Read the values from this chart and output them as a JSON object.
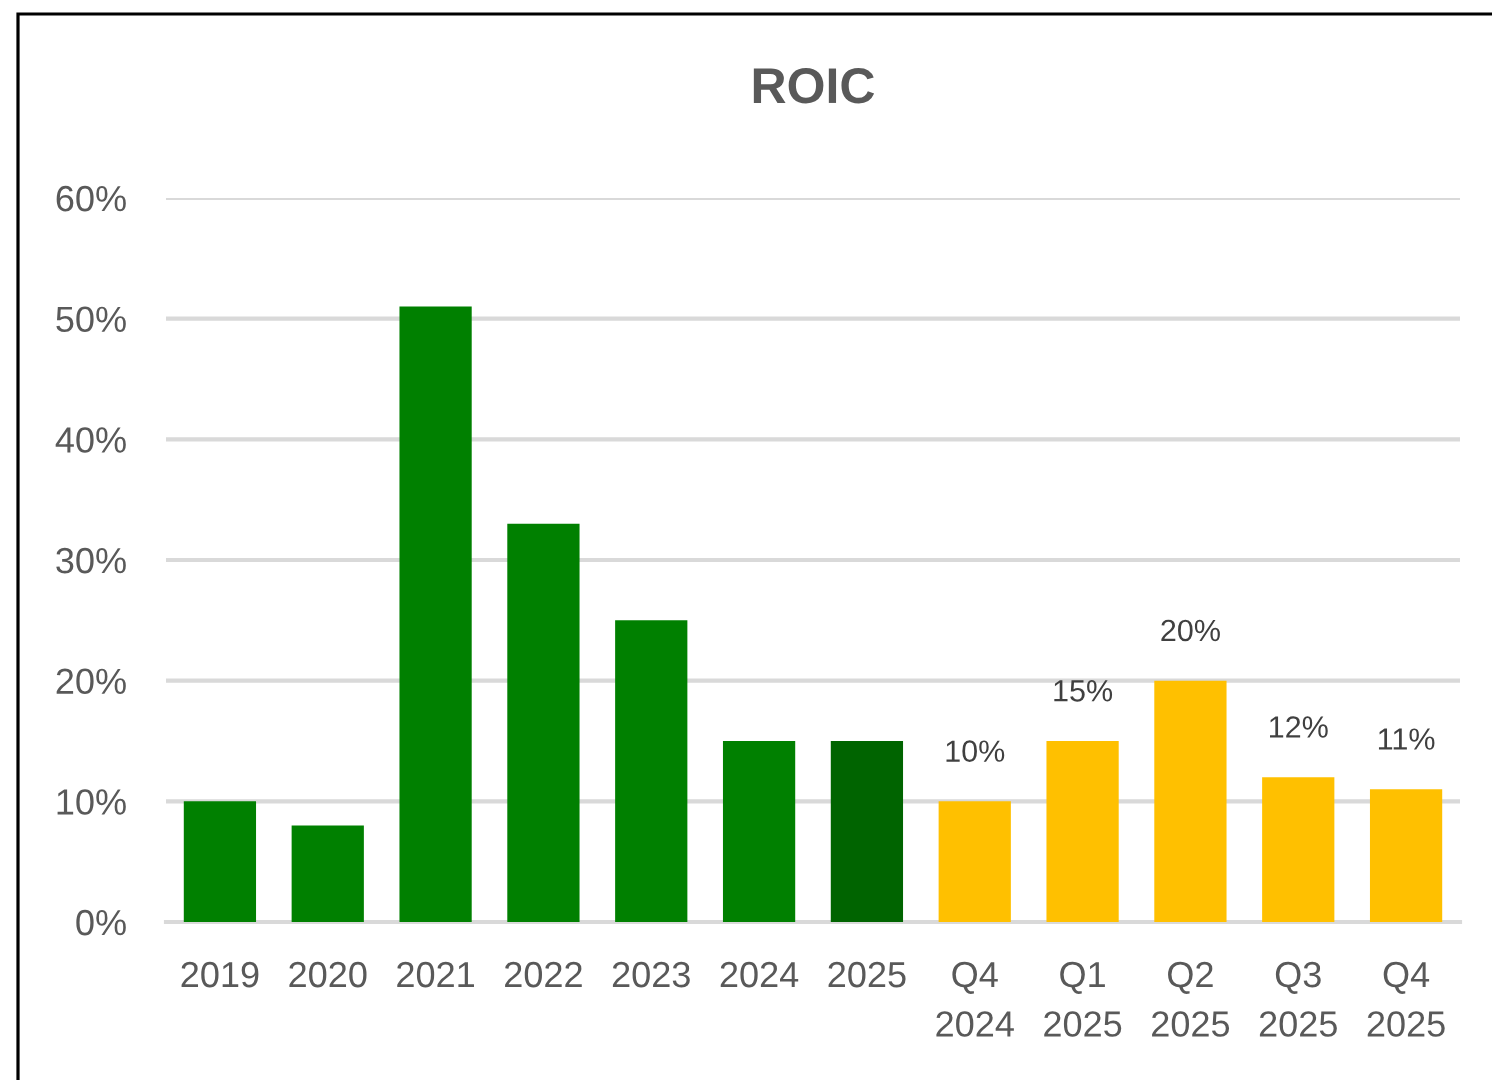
{
  "chart_data": {
    "type": "bar",
    "title": "ROIC",
    "categories": [
      "2019",
      "2020",
      "2021",
      "2022",
      "2023",
      "2024",
      "2025",
      "Q4\n2024",
      "Q1\n2025",
      "Q2\n2025",
      "Q3\n2025",
      "Q4\n2025"
    ],
    "values": [
      10,
      8,
      51,
      33,
      25,
      15,
      15,
      10,
      15,
      20,
      12,
      11
    ],
    "colors": [
      "#008000",
      "#008000",
      "#008000",
      "#008000",
      "#008000",
      "#008000",
      "#006400",
      "#ffc000",
      "#ffc000",
      "#ffc000",
      "#ffc000",
      "#ffc000"
    ],
    "value_labels": [
      null,
      null,
      null,
      null,
      null,
      null,
      null,
      "10%",
      "15%",
      "20%",
      "12%",
      "11%"
    ],
    "ylim": [
      0,
      60
    ],
    "yticks": [
      {
        "value": 0,
        "label": "0%"
      },
      {
        "value": 10,
        "label": "10%"
      },
      {
        "value": 20,
        "label": "20%"
      },
      {
        "value": 30,
        "label": "30%"
      },
      {
        "value": 40,
        "label": "40%"
      },
      {
        "value": 50,
        "label": "50%"
      },
      {
        "value": 60,
        "label": "60%"
      }
    ],
    "grid": "y"
  }
}
